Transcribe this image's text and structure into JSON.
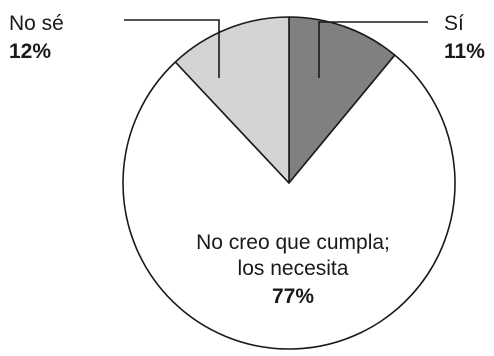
{
  "chart_data": {
    "type": "pie",
    "slices": [
      {
        "label": "Sí",
        "value": 11,
        "value_label": "11%",
        "color": "#808080"
      },
      {
        "label": "No creo que cumpla; los necesita",
        "label_lines": [
          "No creo que cumpla;",
          "los necesita"
        ],
        "value": 77,
        "value_label": "77%",
        "color": "#ffffff"
      },
      {
        "label": "No sé",
        "value": 12,
        "value_label": "12%",
        "color": "#d4d4d4"
      }
    ],
    "outline_color": "#1a1a1a"
  }
}
